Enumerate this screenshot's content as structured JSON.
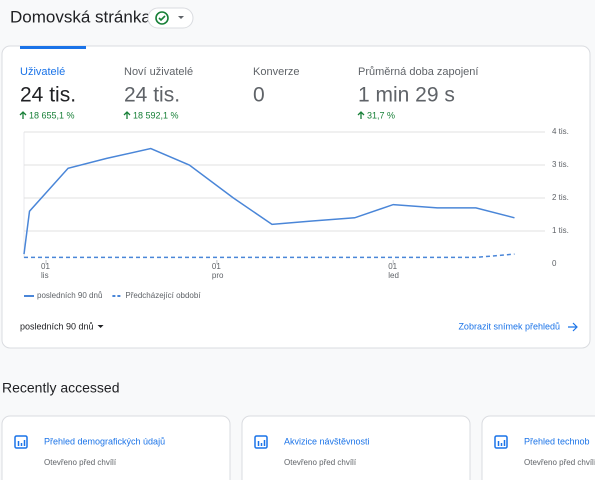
{
  "header": {
    "title": "Domovská stránka"
  },
  "metrics": [
    {
      "label": "Uživatelé",
      "value": "24 tis.",
      "change": "18 655,1 %"
    },
    {
      "label": "Noví uživatelé",
      "value": "24 tis.",
      "change": "18 592,1 %"
    },
    {
      "label": "Konverze",
      "value": "0",
      "change": null
    },
    {
      "label": "Průměrná doba zapojení",
      "value": "1 min 29 s",
      "change": "31,7 %"
    }
  ],
  "chart_data": {
    "type": "line",
    "x": [
      0,
      1,
      8,
      15,
      23,
      30,
      38,
      45,
      52,
      60,
      67,
      75,
      82,
      89
    ],
    "series": [
      {
        "name": "posledních 90 dnů",
        "color": "#4a86d8",
        "values": [
          300,
          1600,
          2900,
          3200,
          3500,
          3000,
          2000,
          1200,
          1300,
          1400,
          1800,
          1700,
          1700,
          1400
        ]
      },
      {
        "name": "Předcházející období",
        "color": "#4a86d8",
        "values": [
          200,
          200,
          200,
          200,
          200,
          200,
          200,
          200,
          200,
          200,
          200,
          200,
          200,
          300
        ]
      }
    ],
    "xlim": [
      0,
      90
    ],
    "xticks": [
      {
        "value": 4,
        "label": [
          "01",
          "lis"
        ]
      },
      {
        "value": 35,
        "label": [
          "01",
          "pro"
        ]
      },
      {
        "value": 67,
        "label": [
          "01",
          "led"
        ]
      }
    ],
    "ylim": [
      0,
      4000
    ],
    "yticks": [
      0,
      {
        "value": 1000,
        "label": "1 tis."
      },
      {
        "value": 2000,
        "label": "2 tis."
      },
      {
        "value": 3000,
        "label": "3 tis."
      },
      {
        "value": 4000,
        "label": "4 tis."
      }
    ],
    "grid": true
  },
  "footer": {
    "range": "posledních 90 dnů",
    "link": "Zobrazit snímek přehledů"
  },
  "recent": {
    "title": "Recently accessed",
    "cards": [
      {
        "title": "Přehled demografických údajů",
        "subtitle": "Otevřeno před chvílí"
      },
      {
        "title": "Akvizice návštěvnosti",
        "subtitle": "Otevřeno před chvílí"
      },
      {
        "title": "Přehled technob",
        "subtitle": "Otevřeno před chvílí"
      }
    ]
  }
}
